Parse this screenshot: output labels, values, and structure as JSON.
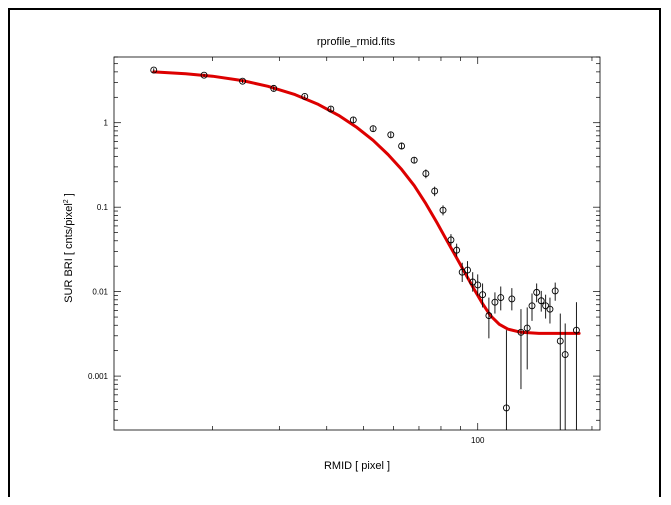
{
  "chart_data": {
    "type": "scatter",
    "title": "rprofile_rmid.fits",
    "xlabel": "RMID [ pixel ]",
    "ylabel_prefix": "SUR BRI [ cnts/pixel",
    "ylabel_superscript": "2",
    "ylabel_suffix": " ]",
    "x_scale": "log",
    "y_scale": "log",
    "xlim": [
      11,
      210
    ],
    "ylim": [
      0.00023,
      6
    ],
    "x_ticks": [
      {
        "value": 100,
        "label": "100"
      }
    ],
    "y_ticks": [
      {
        "value": 1,
        "label": "1"
      },
      {
        "value": 0.1,
        "label": "0.1"
      },
      {
        "value": 0.01,
        "label": "0.01"
      },
      {
        "value": 0.001,
        "label": "0.001"
      }
    ],
    "series": [
      {
        "kind": "points_with_error_bars",
        "color": "#000000",
        "points": [
          {
            "x": 14.0,
            "y": 4.2,
            "lo": 4.0,
            "hi": 4.4
          },
          {
            "x": 19.0,
            "y": 3.65,
            "lo": 3.5,
            "hi": 3.8
          },
          {
            "x": 24.0,
            "y": 3.1,
            "lo": 2.95,
            "hi": 3.25
          },
          {
            "x": 29.0,
            "y": 2.55,
            "lo": 2.4,
            "hi": 2.7
          },
          {
            "x": 35.0,
            "y": 2.05,
            "lo": 1.95,
            "hi": 2.15
          },
          {
            "x": 41.0,
            "y": 1.45,
            "lo": 1.35,
            "hi": 1.55
          },
          {
            "x": 47.0,
            "y": 1.08,
            "lo": 1.0,
            "hi": 1.16
          },
          {
            "x": 53.0,
            "y": 0.85,
            "lo": 0.79,
            "hi": 0.91
          },
          {
            "x": 59.0,
            "y": 0.72,
            "lo": 0.67,
            "hi": 0.77
          },
          {
            "x": 63.0,
            "y": 0.53,
            "lo": 0.49,
            "hi": 0.57
          },
          {
            "x": 68.0,
            "y": 0.36,
            "lo": 0.33,
            "hi": 0.39
          },
          {
            "x": 73.0,
            "y": 0.25,
            "lo": 0.22,
            "hi": 0.28
          },
          {
            "x": 77.0,
            "y": 0.155,
            "lo": 0.135,
            "hi": 0.175
          },
          {
            "x": 81.0,
            "y": 0.092,
            "lo": 0.08,
            "hi": 0.105
          },
          {
            "x": 85.0,
            "y": 0.041,
            "lo": 0.035,
            "hi": 0.048
          },
          {
            "x": 88.0,
            "y": 0.031,
            "lo": 0.026,
            "hi": 0.037
          },
          {
            "x": 91.0,
            "y": 0.017,
            "lo": 0.013,
            "hi": 0.022
          },
          {
            "x": 94.0,
            "y": 0.018,
            "lo": 0.014,
            "hi": 0.023
          },
          {
            "x": 97.0,
            "y": 0.013,
            "lo": 0.01,
            "hi": 0.017
          },
          {
            "x": 100.0,
            "y": 0.012,
            "lo": 0.009,
            "hi": 0.016
          },
          {
            "x": 103.0,
            "y": 0.0092,
            "lo": 0.0065,
            "hi": 0.0125
          },
          {
            "x": 107.0,
            "y": 0.0052,
            "lo": 0.0028,
            "hi": 0.0085
          },
          {
            "x": 111.0,
            "y": 0.0075,
            "lo": 0.0055,
            "hi": 0.0098
          },
          {
            "x": 115.0,
            "y": 0.0085,
            "lo": 0.006,
            "hi": 0.0115
          },
          {
            "x": 119.0,
            "y": 0.00042,
            "lo": 0.00023,
            "hi": 0.0035
          },
          {
            "x": 123.0,
            "y": 0.0082,
            "lo": 0.006,
            "hi": 0.011
          },
          {
            "x": 130.0,
            "y": 0.0033,
            "lo": 0.0007,
            "hi": 0.0062
          },
          {
            "x": 135.0,
            "y": 0.0037,
            "lo": 0.0012,
            "hi": 0.0065
          },
          {
            "x": 139.0,
            "y": 0.0068,
            "lo": 0.0045,
            "hi": 0.0095
          },
          {
            "x": 143.0,
            "y": 0.0098,
            "lo": 0.0075,
            "hi": 0.0125
          },
          {
            "x": 147.0,
            "y": 0.0078,
            "lo": 0.0058,
            "hi": 0.0102
          },
          {
            "x": 151.0,
            "y": 0.0068,
            "lo": 0.0048,
            "hi": 0.0092
          },
          {
            "x": 155.0,
            "y": 0.0062,
            "lo": 0.0042,
            "hi": 0.0085
          },
          {
            "x": 160.0,
            "y": 0.0102,
            "lo": 0.0078,
            "hi": 0.0128
          },
          {
            "x": 165.0,
            "y": 0.0026,
            "lo": 0.00023,
            "hi": 0.0055
          },
          {
            "x": 170.0,
            "y": 0.0018,
            "lo": 0.00023,
            "hi": 0.0042
          },
          {
            "x": 182.0,
            "y": 0.0035,
            "lo": 0.00023,
            "hi": 0.0075
          }
        ]
      },
      {
        "kind": "model_curve",
        "color": "#dd0000",
        "x": [
          14,
          17,
          20,
          24,
          28,
          33,
          38,
          43,
          48,
          53,
          58,
          63,
          68,
          73,
          78,
          83,
          88,
          93,
          98,
          103,
          108,
          114,
          120,
          130,
          145,
          165,
          185
        ],
        "y": [
          4.0,
          3.8,
          3.55,
          3.15,
          2.7,
          2.15,
          1.65,
          1.22,
          0.88,
          0.62,
          0.42,
          0.28,
          0.18,
          0.11,
          0.066,
          0.04,
          0.025,
          0.016,
          0.0105,
          0.0072,
          0.0052,
          0.0041,
          0.0036,
          0.0033,
          0.0032,
          0.0032,
          0.0032
        ]
      }
    ]
  }
}
